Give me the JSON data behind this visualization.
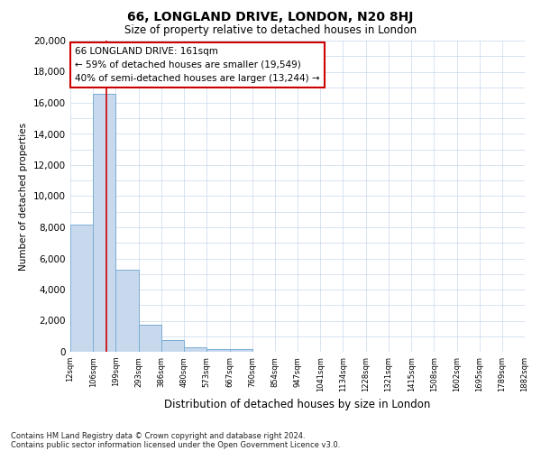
{
  "title": "66, LONGLAND DRIVE, LONDON, N20 8HJ",
  "subtitle": "Size of property relative to detached houses in London",
  "xlabel": "Distribution of detached houses by size in London",
  "ylabel": "Number of detached properties",
  "property_size": 161,
  "property_label": "66 LONGLAND DRIVE: 161sqm",
  "annotation_line1": "← 59% of detached houses are smaller (19,549)",
  "annotation_line2": "40% of semi-detached houses are larger (13,244) →",
  "footnote1": "Contains HM Land Registry data © Crown copyright and database right 2024.",
  "footnote2": "Contains public sector information licensed under the Open Government Licence v3.0.",
  "bar_color": "#c8d9ee",
  "bar_edge_color": "#7aaed4",
  "vline_color": "#cc0000",
  "annotation_box_color": "#cc0000",
  "background_color": "#ffffff",
  "grid_color": "#c8d8ec",
  "bin_edges": [
    12,
    106,
    199,
    293,
    386,
    480,
    573,
    667,
    760,
    854,
    947,
    1041,
    1134,
    1228,
    1321,
    1415,
    1508,
    1602,
    1695,
    1789,
    1882
  ],
  "bar_heights": [
    8200,
    16600,
    5300,
    1750,
    750,
    280,
    200,
    200,
    0,
    0,
    0,
    0,
    0,
    0,
    0,
    0,
    0,
    0,
    0,
    0
  ],
  "ylim": [
    0,
    20000
  ],
  "yticks": [
    0,
    2000,
    4000,
    6000,
    8000,
    10000,
    12000,
    14000,
    16000,
    18000,
    20000
  ]
}
